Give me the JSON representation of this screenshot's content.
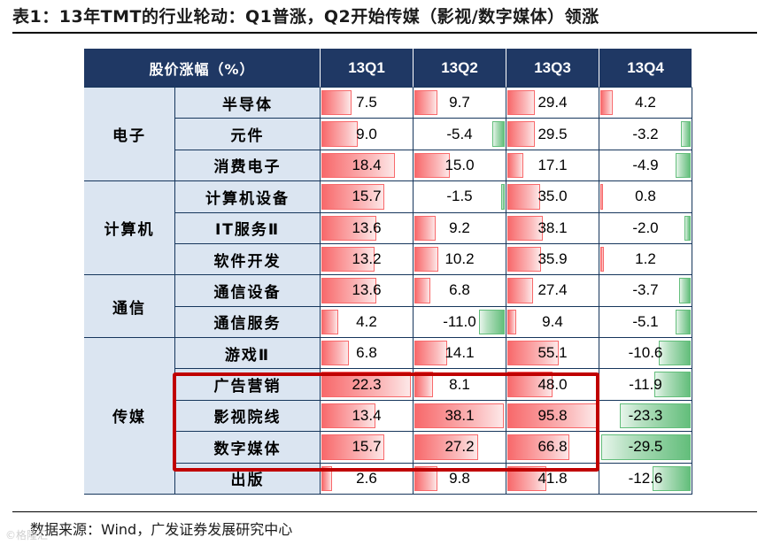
{
  "title": "表1：13年TMT的行业轮动：Q1普涨，Q2开始传媒（影视/数字媒体）领涨",
  "table": {
    "header": [
      "股价涨幅（%）",
      "13Q1",
      "13Q2",
      "13Q3",
      "13Q4"
    ],
    "groups": [
      {
        "name": "电子",
        "rows": [
          {
            "sector": "半导体",
            "values": [
              "7.5",
              "9.7",
              "29.4",
              "4.2"
            ]
          },
          {
            "sector": "元件",
            "values": [
              "9.0",
              "-5.4",
              "29.5",
              "-3.2"
            ]
          },
          {
            "sector": "消费电子",
            "values": [
              "18.4",
              "15.0",
              "17.1",
              "-4.9"
            ]
          }
        ]
      },
      {
        "name": "计算机",
        "rows": [
          {
            "sector": "计算机设备",
            "values": [
              "15.7",
              "-1.5",
              "35.0",
              "0.8"
            ]
          },
          {
            "sector": "IT服务Ⅱ",
            "values": [
              "13.6",
              "9.2",
              "38.1",
              "-2.0"
            ]
          },
          {
            "sector": "软件开发",
            "values": [
              "13.2",
              "10.2",
              "35.9",
              "1.2"
            ]
          }
        ]
      },
      {
        "name": "通信",
        "rows": [
          {
            "sector": "通信设备",
            "values": [
              "13.6",
              "6.8",
              "27.4",
              "-3.7"
            ]
          },
          {
            "sector": "通信服务",
            "values": [
              "4.2",
              "-11.0",
              "9.4",
              "-5.1"
            ]
          }
        ]
      },
      {
        "name": "传媒",
        "rows": [
          {
            "sector": "游戏Ⅱ",
            "values": [
              "6.8",
              "14.1",
              "55.1",
              "-10.6"
            ]
          },
          {
            "sector": "广告营销",
            "values": [
              "22.3",
              "8.1",
              "48.0",
              "-11.9"
            ]
          },
          {
            "sector": "影视院线",
            "values": [
              "13.4",
              "38.1",
              "95.8",
              "-23.3"
            ]
          },
          {
            "sector": "数字媒体",
            "values": [
              "15.7",
              "27.2",
              "66.8",
              "-29.5"
            ]
          },
          {
            "sector": "出版",
            "values": [
              "2.6",
              "9.8",
              "41.8",
              "-12.6"
            ]
          }
        ]
      }
    ]
  },
  "highlight_rows": [
    "广告营销",
    "影视院线",
    "数字媒体"
  ],
  "colors": {
    "header_bg": "#1f3864",
    "label_bg": "#dbe5f1",
    "positive_bar": "#f8696b",
    "negative_bar": "#63be7b",
    "highlight_border": "#c00000"
  },
  "source": "数据来源：Wind，广发证券发展研究中心",
  "watermark": "©格隆汇"
}
